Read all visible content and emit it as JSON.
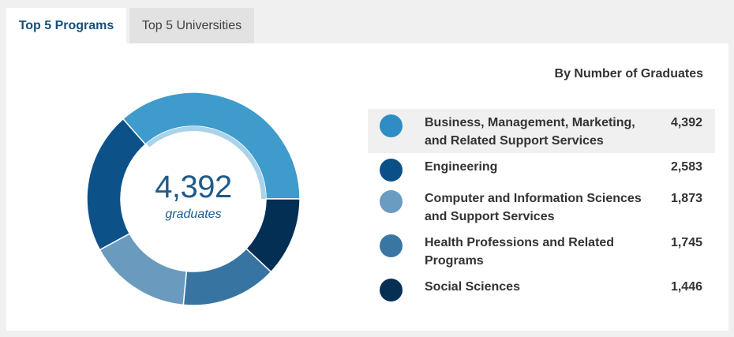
{
  "tabs": [
    {
      "label": "Top 5 Programs",
      "active": true
    },
    {
      "label": "Top 5 Universities",
      "active": false
    }
  ],
  "center": {
    "value": "4,392",
    "unit": "graduates"
  },
  "legend": {
    "title": "By Number of Graduates",
    "items": [
      {
        "label": "Business, Management, Marketing, and Related Support Services",
        "value": "4,392",
        "color": "#2f8dc4",
        "highlighted": true
      },
      {
        "label": "Engineering",
        "value": "2,583",
        "color": "#0a4f87"
      },
      {
        "label": "Computer and Information Sciences and Support Services",
        "value": "1,873",
        "color": "#6a9bc0"
      },
      {
        "label": "Health Professions and Related Programs",
        "value": "1,745",
        "color": "#3a76a4"
      },
      {
        "label": "Social Sciences",
        "value": "1,446",
        "color": "#062f53"
      }
    ]
  },
  "colors": {
    "donut_business": "#3f9bcb",
    "donut_engineering": "#0d5189",
    "donut_computer": "#6a9bbf",
    "donut_health": "#3874a2",
    "donut_social": "#042f54",
    "highlight_ring": "#a9d3ea",
    "accent_text": "#1f5a8b"
  },
  "chart_data": {
    "type": "pie",
    "title": "By Number of Graduates",
    "variant": "donut",
    "center_text": "4,392 graduates",
    "categories": [
      "Business, Management, Marketing, and Related Support Services",
      "Engineering",
      "Computer and Information Sciences and Support Services",
      "Health Professions and Related Programs",
      "Social Sciences"
    ],
    "values": [
      4392,
      2583,
      1873,
      1745,
      1446
    ],
    "highlighted_category": "Business, Management, Marketing, and Related Support Services",
    "legend_position": "right"
  }
}
